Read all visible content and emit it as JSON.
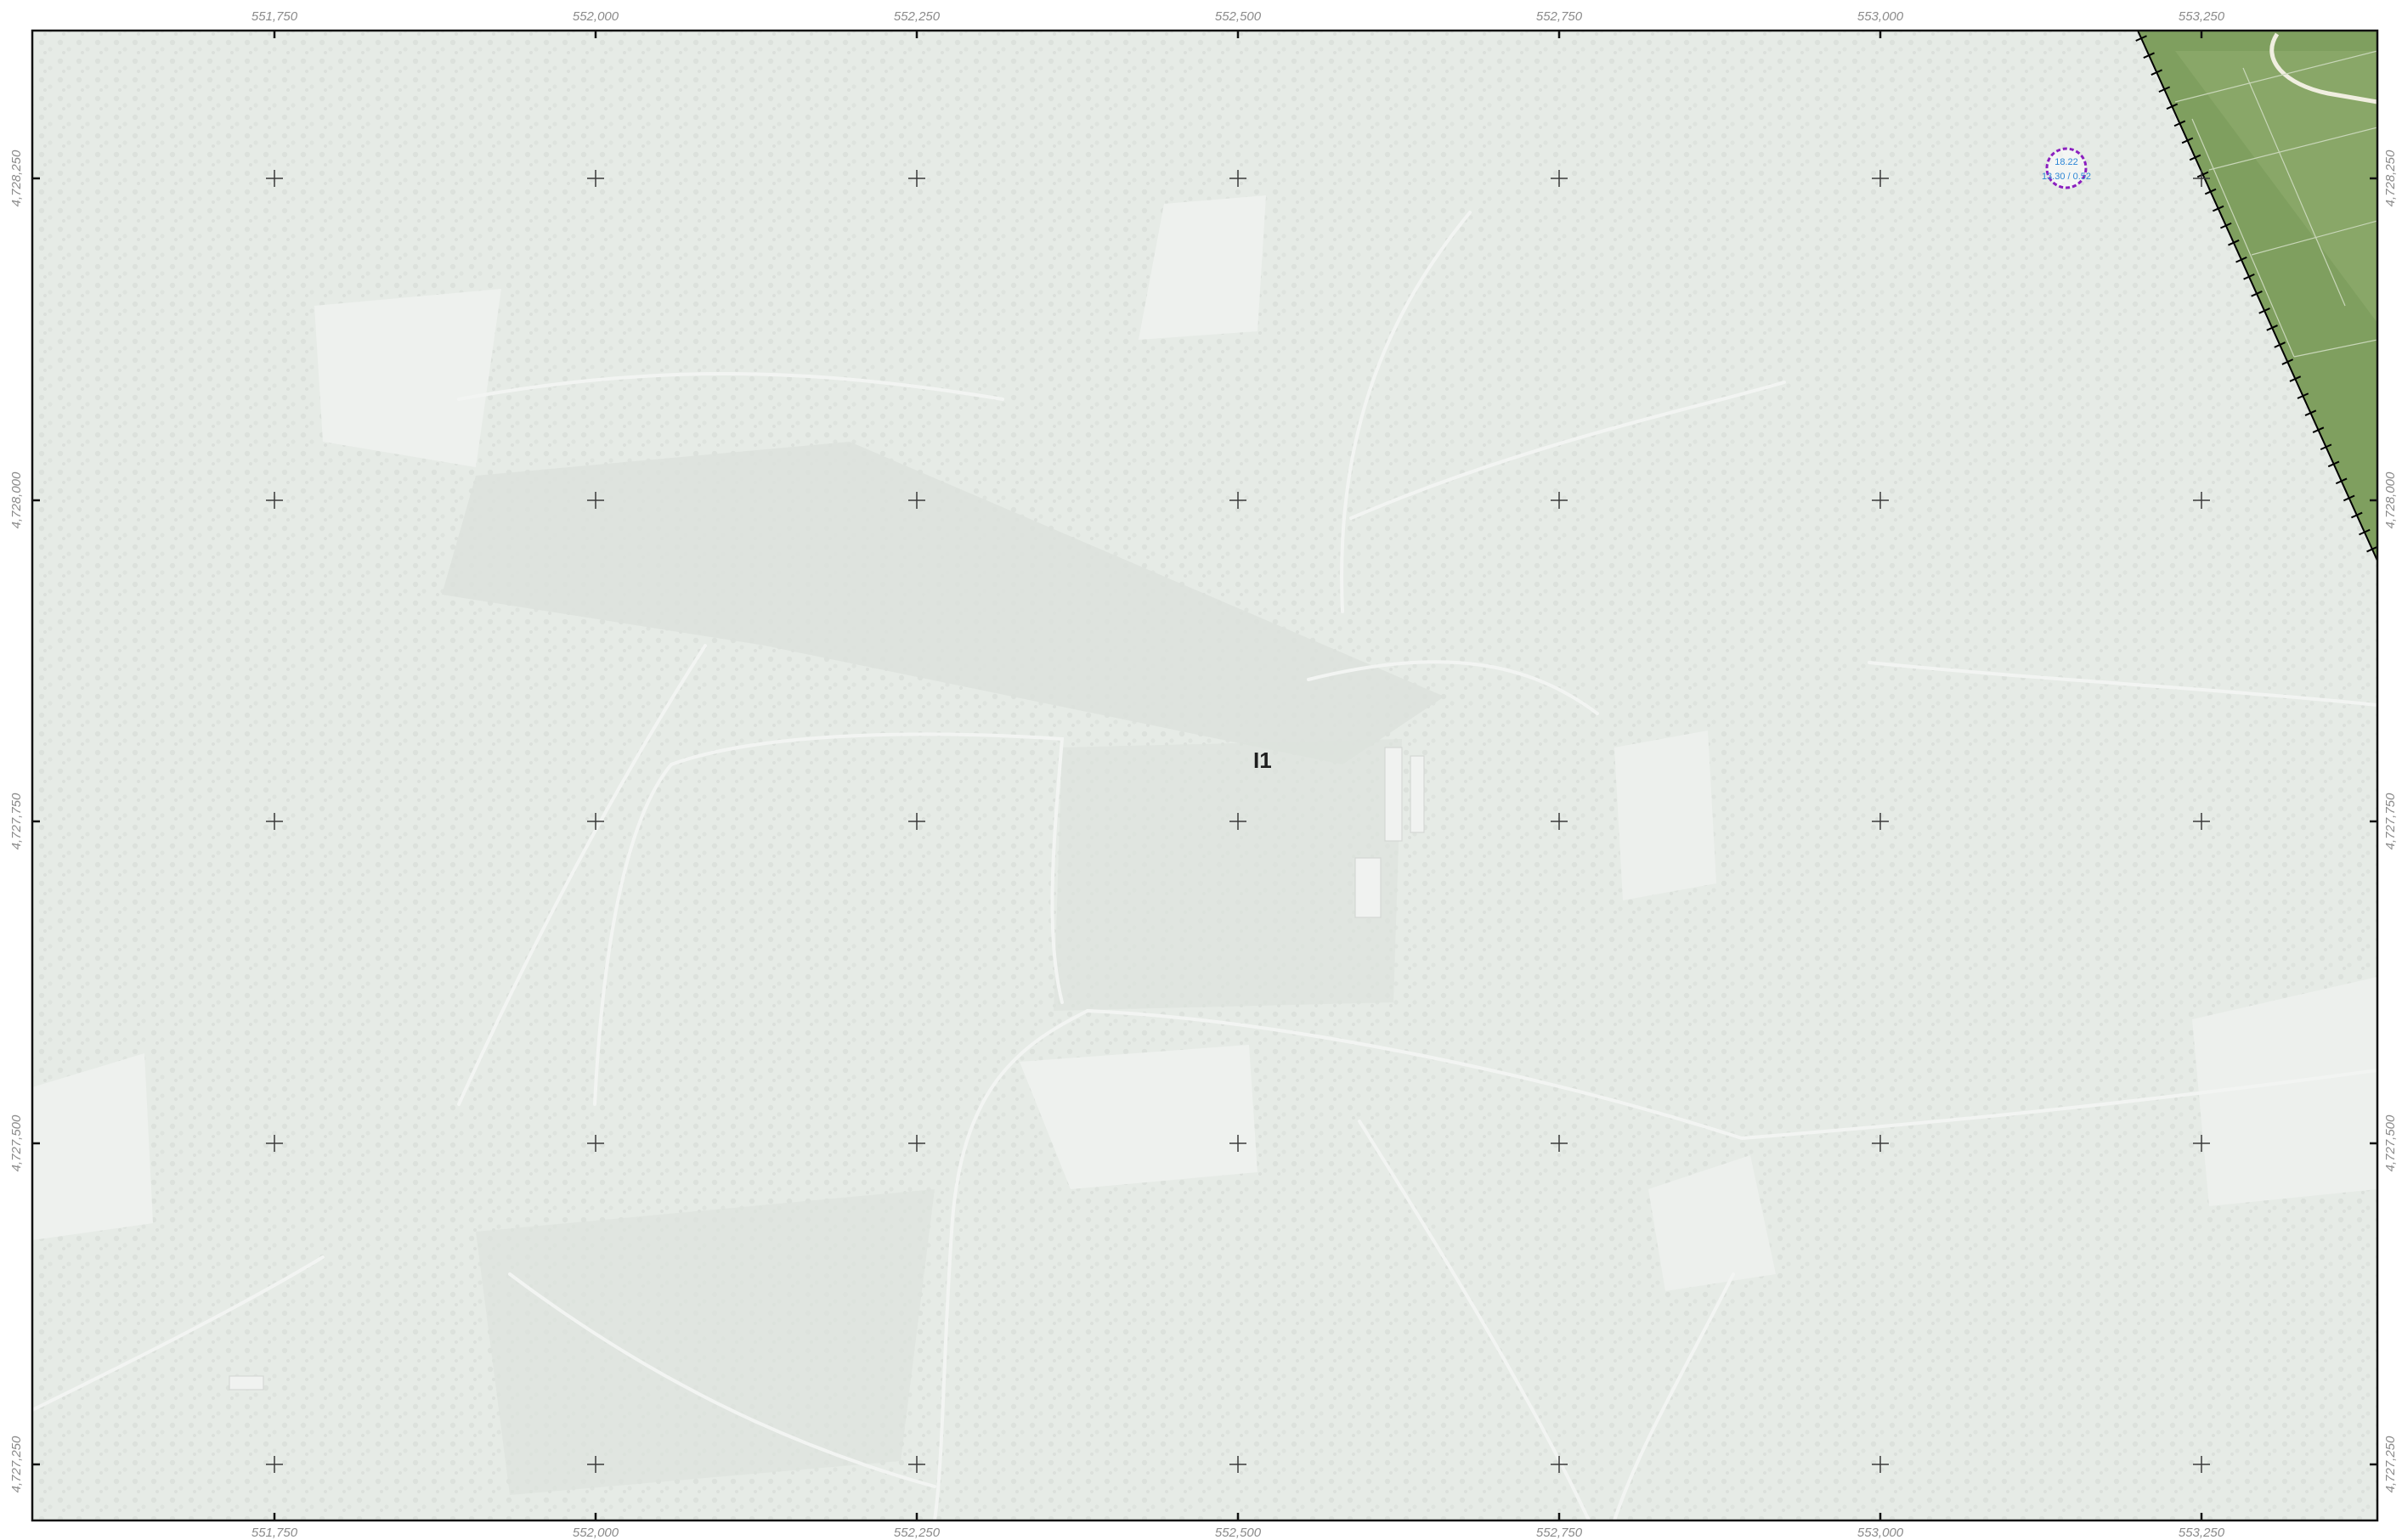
{
  "map": {
    "x_ticks": [
      "551,750",
      "552,000",
      "552,250",
      "552,500",
      "552,750",
      "553,000",
      "553,250"
    ],
    "y_ticks": [
      "4,728,250",
      "4,728,000",
      "4,727,750",
      "4,727,500",
      "4,727,250"
    ],
    "area_label": "I1",
    "point_label_1": "18.22",
    "point_label_2": "13.30 / 0.52",
    "colors": {
      "basemap": "#e6ebe6",
      "green_zone": "#7f9f5f",
      "boundary": "#000000",
      "point_ring": "#8b1fbf",
      "point_text": "#2e86d6"
    },
    "icons": [
      "grid-cross-icon",
      "survey-point-icon"
    ]
  }
}
